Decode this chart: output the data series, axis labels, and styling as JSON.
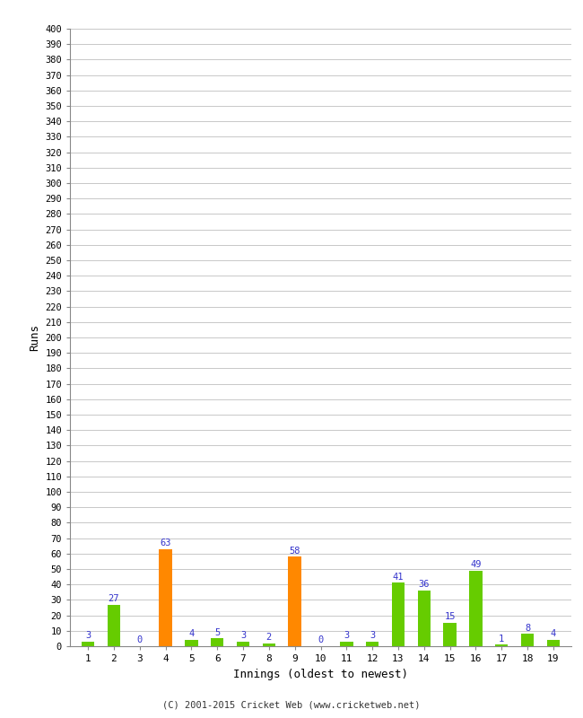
{
  "xlabel": "Innings (oldest to newest)",
  "ylabel": "Runs",
  "innings": [
    1,
    2,
    3,
    4,
    5,
    6,
    7,
    8,
    9,
    10,
    11,
    12,
    13,
    14,
    15,
    16,
    17,
    18,
    19
  ],
  "values": [
    3,
    27,
    0,
    63,
    4,
    5,
    3,
    2,
    58,
    0,
    3,
    3,
    41,
    36,
    15,
    49,
    1,
    8,
    4
  ],
  "colors": [
    "#66cc00",
    "#66cc00",
    "#66cc00",
    "#ff8800",
    "#66cc00",
    "#66cc00",
    "#66cc00",
    "#66cc00",
    "#ff8800",
    "#66cc00",
    "#66cc00",
    "#66cc00",
    "#66cc00",
    "#66cc00",
    "#66cc00",
    "#66cc00",
    "#66cc00",
    "#66cc00",
    "#66cc00"
  ],
  "ylim": [
    0,
    400
  ],
  "yticks": [
    0,
    10,
    20,
    30,
    40,
    50,
    60,
    70,
    80,
    90,
    100,
    110,
    120,
    130,
    140,
    150,
    160,
    170,
    180,
    190,
    200,
    210,
    220,
    230,
    240,
    250,
    260,
    270,
    280,
    290,
    300,
    310,
    320,
    330,
    340,
    350,
    360,
    370,
    380,
    390,
    400
  ],
  "label_color": "#3333cc",
  "background_color": "#ffffff",
  "grid_color": "#c8c8c8",
  "footer": "(C) 2001-2015 Cricket Web (www.cricketweb.net)",
  "bar_width": 0.5
}
